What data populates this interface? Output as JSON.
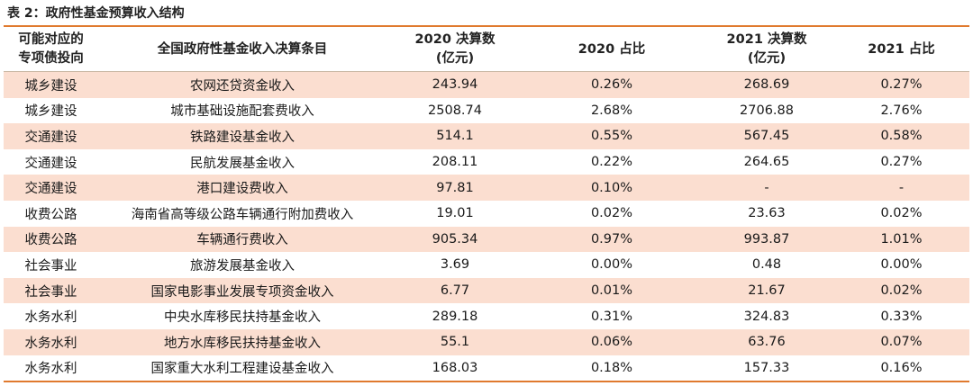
{
  "caption": "表 2：政府性基金预算收入结构",
  "headers": {
    "direction_line1": "可能对应的",
    "direction_line2": "专项债投向",
    "item": "全国政府性基金收入决算条目",
    "y2020_line1": "2020 决算数",
    "y2020_line2": "(亿元)",
    "share2020": "2020 占比",
    "y2021_line1": "2021 决算数",
    "y2021_line2": "(亿元)",
    "share2021": "2021 占比"
  },
  "rows": [
    {
      "direction": "城乡建设",
      "item": "农网还贷资金收入",
      "v2020": "243.94",
      "s2020": "0.26%",
      "v2021": "268.69",
      "s2021": "0.27%"
    },
    {
      "direction": "城乡建设",
      "item": "城市基础设施配套费收入",
      "v2020": "2508.74",
      "s2020": "2.68%",
      "v2021": "2706.88",
      "s2021": "2.76%"
    },
    {
      "direction": "交通建设",
      "item": "铁路建设基金收入",
      "v2020": "514.1",
      "s2020": "0.55%",
      "v2021": "567.45",
      "s2021": "0.58%"
    },
    {
      "direction": "交通建设",
      "item": "民航发展基金收入",
      "v2020": "208.11",
      "s2020": "0.22%",
      "v2021": "264.65",
      "s2021": "0.27%"
    },
    {
      "direction": "交通建设",
      "item": "港口建设费收入",
      "v2020": "97.81",
      "s2020": "0.10%",
      "v2021": "-",
      "s2021": "-"
    },
    {
      "direction": "收费公路",
      "item": "海南省高等级公路车辆通行附加费收入",
      "v2020": "19.01",
      "s2020": "0.02%",
      "v2021": "23.63",
      "s2021": "0.02%"
    },
    {
      "direction": "收费公路",
      "item": "车辆通行费收入",
      "v2020": "905.34",
      "s2020": "0.97%",
      "v2021": "993.87",
      "s2021": "1.01%"
    },
    {
      "direction": "社会事业",
      "item": "旅游发展基金收入",
      "v2020": "3.69",
      "s2020": "0.00%",
      "v2021": "0.48",
      "s2021": "0.00%"
    },
    {
      "direction": "社会事业",
      "item": "国家电影事业发展专项资金收入",
      "v2020": "6.77",
      "s2020": "0.01%",
      "v2021": "21.67",
      "s2021": "0.02%"
    },
    {
      "direction": "水务水利",
      "item": "中央水库移民扶持基金收入",
      "v2020": "289.18",
      "s2020": "0.31%",
      "v2021": "324.83",
      "s2021": "0.33%"
    },
    {
      "direction": "水务水利",
      "item": "地方水库移民扶持基金收入",
      "v2020": "55.1",
      "s2020": "0.06%",
      "v2021": "63.76",
      "s2021": "0.07%"
    },
    {
      "direction": "水务水利",
      "item": "国家重大水利工程建设基金收入",
      "v2020": "168.03",
      "s2020": "0.18%",
      "v2021": "157.33",
      "s2021": "0.16%"
    }
  ],
  "colors": {
    "accent": "#e07a2e",
    "row_shade": "#fbded0"
  }
}
